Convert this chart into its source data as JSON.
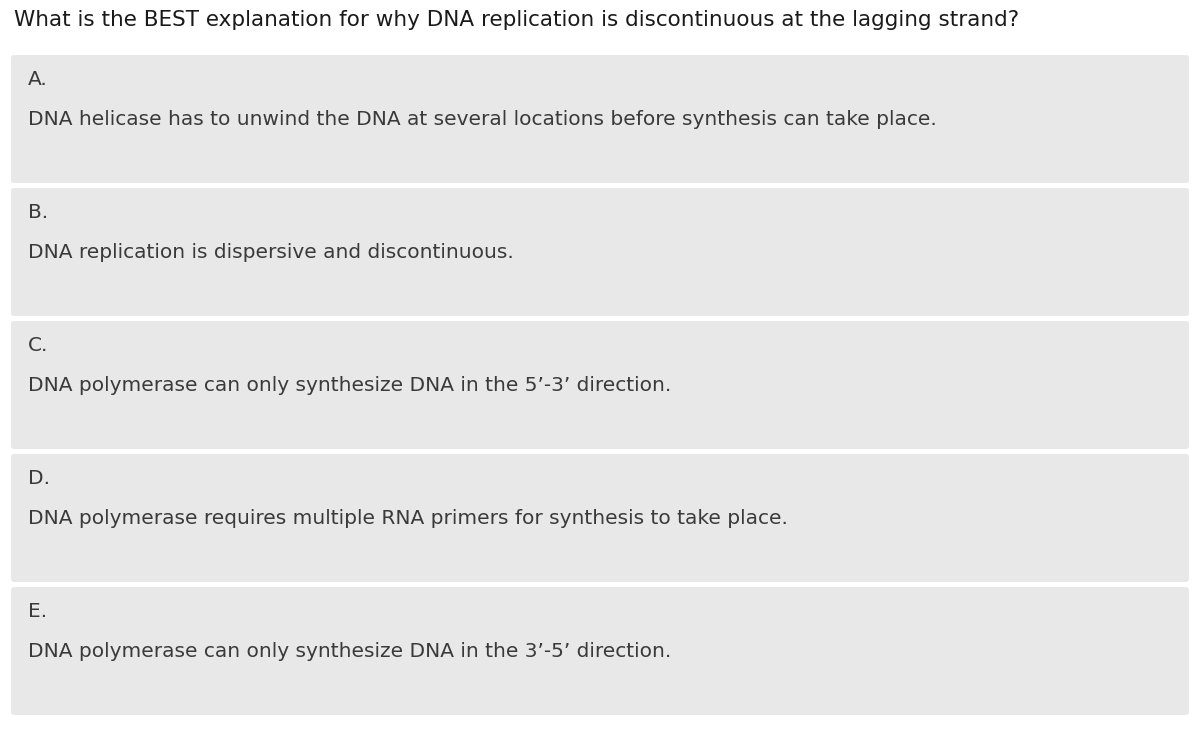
{
  "question": "What is the BEST explanation for why DNA replication is discontinuous at the lagging strand?",
  "options": [
    {
      "letter": "A.",
      "text": "DNA helicase has to unwind the DNA at several locations before synthesis can take place."
    },
    {
      "letter": "B.",
      "text": "DNA replication is dispersive and discontinuous."
    },
    {
      "letter": "C.",
      "text": "DNA polymerase can only synthesize DNA in the 5’-3’ direction."
    },
    {
      "letter": "D.",
      "text": "DNA polymerase requires multiple RNA primers for synthesis to take place."
    },
    {
      "letter": "E.",
      "text": "DNA polymerase can only synthesize DNA in the 3’-5’ direction."
    }
  ],
  "bg_color": "#ffffff",
  "question_color": "#1a1a1a",
  "option_bg_color": "#e8e8e8",
  "option_text_color": "#3a3a3a",
  "option_letter_color": "#3a3a3a",
  "question_fontsize": 15.5,
  "option_letter_fontsize": 14.5,
  "option_text_fontsize": 14.5,
  "fig_width": 12.0,
  "fig_height": 7.54,
  "dpi": 100
}
